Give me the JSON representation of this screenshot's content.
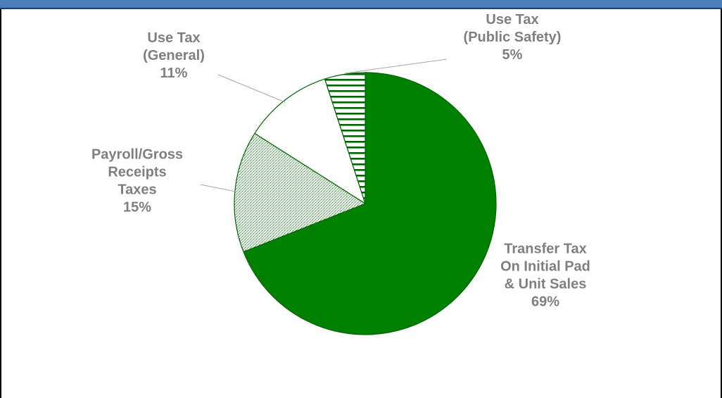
{
  "chart_data": {
    "type": "pie",
    "title": "",
    "series": [
      {
        "label_lines": [
          "Transfer Tax",
          "On Initial Pad",
          "& Unit Sales"
        ],
        "percent_label": "69%",
        "value": 69,
        "fill": "#008000",
        "pattern": "solid"
      },
      {
        "label_lines": [
          "Payroll/Gross",
          "Receipts",
          "Taxes"
        ],
        "percent_label": "15%",
        "value": 15,
        "fill": "#006400",
        "pattern": "diagonal-dots"
      },
      {
        "label_lines": [
          "Use Tax",
          "(General)"
        ],
        "percent_label": "11%",
        "value": 11,
        "fill": "#ffffff",
        "pattern": "solid"
      },
      {
        "label_lines": [
          "Use Tax",
          "(Public Safety)"
        ],
        "percent_label": "5%",
        "value": 5,
        "fill": "#006400",
        "pattern": "horizontal-lines"
      }
    ]
  },
  "colors": {
    "header_bar": "#4a7ebb",
    "label_text": "#7f7f7f",
    "slice_outline": "#006400",
    "leader_line": "#a6a6a6"
  }
}
